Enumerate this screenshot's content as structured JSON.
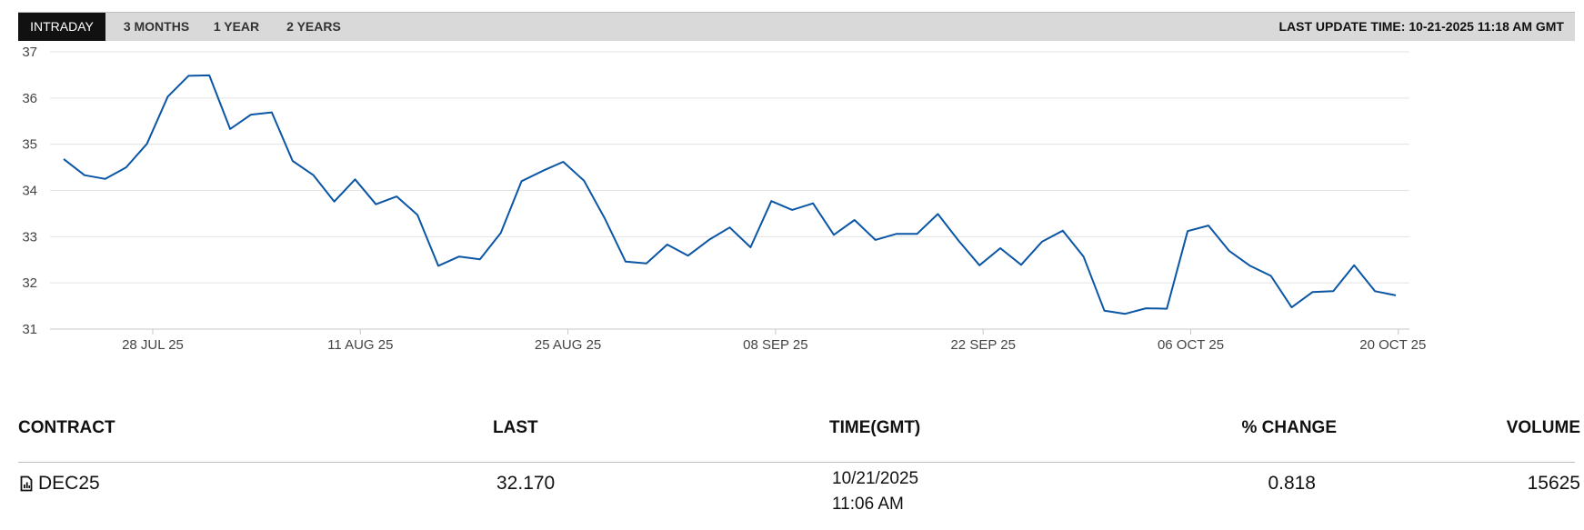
{
  "tabs": [
    {
      "label": "INTRADAY",
      "active": true
    },
    {
      "label": "3 MONTHS",
      "active": false
    },
    {
      "label": "1 YEAR",
      "active": false
    },
    {
      "label": "2 YEARS",
      "active": false
    }
  ],
  "last_update": "LAST UPDATE TIME: 10-21-2025 11:18 AM GMT",
  "line_color": "#0b56a4",
  "chart_data": {
    "type": "line",
    "ylim": [
      31,
      37
    ],
    "y_ticks": [
      "37",
      "36",
      "35",
      "34",
      "33",
      "32",
      "31"
    ],
    "x_tick_labels": [
      "28 JUL 25",
      "11 AUG 25",
      "25 AUG 25",
      "08 SEP 25",
      "22 SEP 25",
      "06 OCT 25",
      "20 OCT 25"
    ],
    "grid": true,
    "series": [
      {
        "values": [
          34.68,
          34.33,
          34.25,
          34.5,
          35.01,
          36.03,
          36.48,
          36.49,
          35.33,
          35.64,
          35.69,
          34.64,
          34.33,
          33.76,
          34.24,
          33.7,
          33.87,
          33.47,
          32.37,
          32.57,
          32.51,
          33.08,
          34.2,
          34.42,
          34.62,
          34.21,
          33.39,
          32.46,
          32.42,
          32.83,
          32.59,
          32.93,
          33.2,
          32.77,
          33.77,
          33.58,
          33.72,
          33.04,
          33.36,
          32.93,
          33.06,
          33.06,
          33.49,
          32.91,
          32.38,
          32.75,
          32.39,
          32.89,
          33.13,
          32.57,
          31.4,
          31.33,
          31.45,
          31.44,
          33.12,
          33.24,
          32.69,
          32.37,
          32.15,
          31.47,
          31.8,
          31.82,
          32.38,
          31.82,
          31.73
        ]
      }
    ]
  },
  "table": {
    "headers": {
      "contract": "CONTRACT",
      "last": "LAST",
      "time": "TIME(GMT)",
      "change": "% CHANGE",
      "volume": "VOLUME"
    },
    "rows": [
      {
        "contract": "DEC25",
        "last": "32.170",
        "date": "10/21/2025",
        "time": "11:06 AM",
        "change": "0.818",
        "volume": "15625",
        "icon": "document-chart-icon"
      }
    ]
  }
}
